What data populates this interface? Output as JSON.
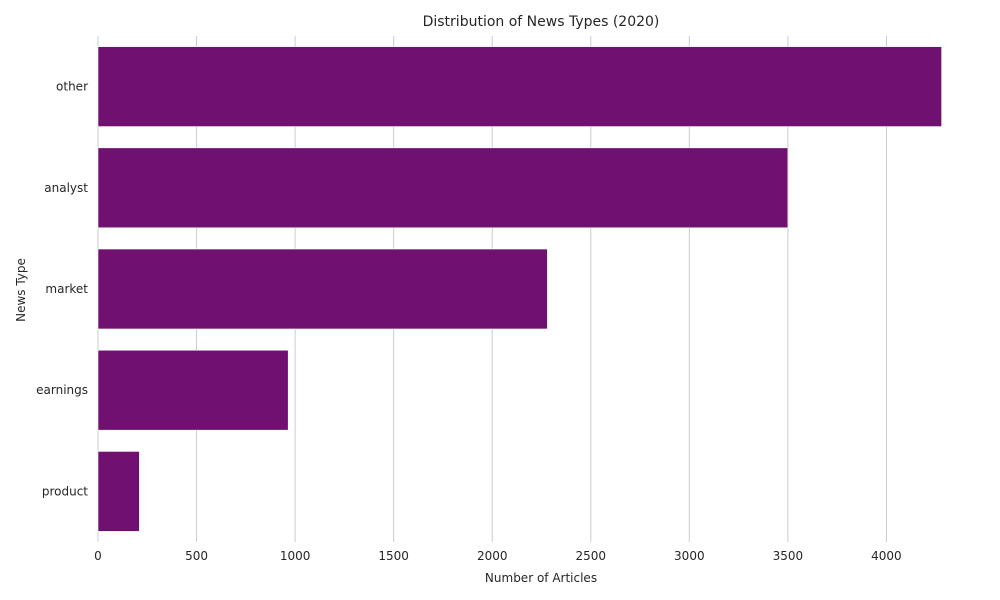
{
  "chart_data": {
    "type": "bar",
    "orientation": "horizontal",
    "title": "Distribution of News Types (2020)",
    "xlabel": "Number of Articles",
    "ylabel": "News Type",
    "categories": [
      "other",
      "analyst",
      "market",
      "earnings",
      "product"
    ],
    "values": [
      4280,
      3500,
      2280,
      965,
      210
    ],
    "xlim": [
      0,
      4500
    ],
    "xticks": [
      0,
      500,
      1000,
      1500,
      2000,
      2500,
      3000,
      3500,
      4000
    ],
    "grid": true,
    "legend": "none",
    "bar_color": "#701070",
    "grid_color": "#cccccc"
  }
}
